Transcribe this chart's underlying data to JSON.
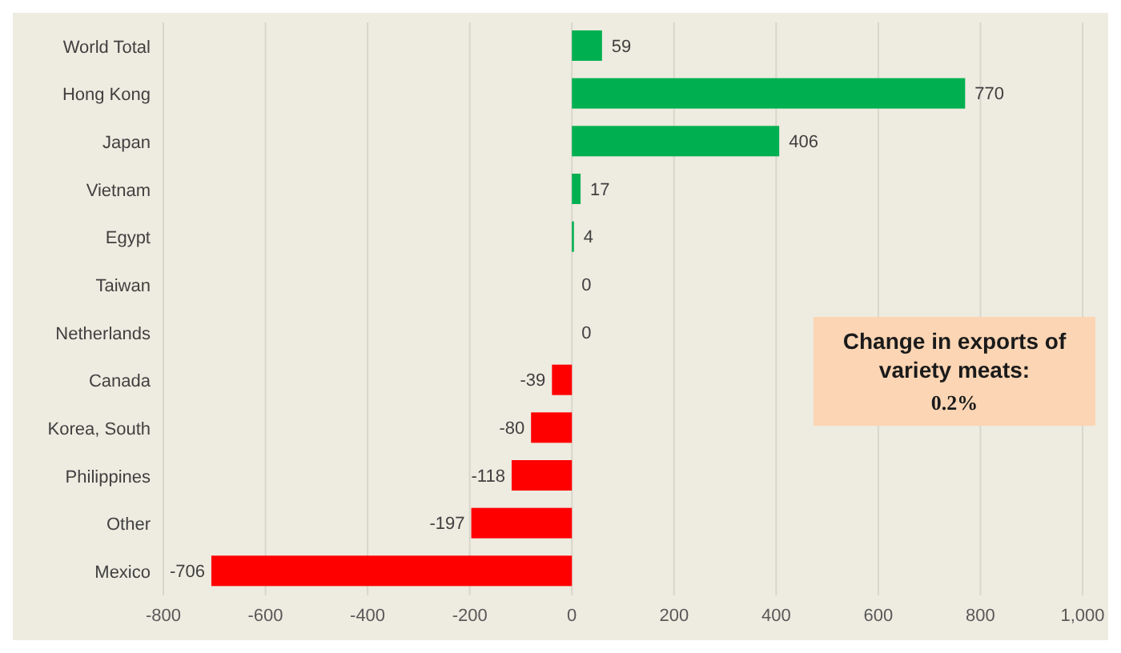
{
  "chart_data": {
    "type": "bar",
    "orientation": "horizontal",
    "categories": [
      "World Total",
      "Hong Kong",
      "Japan",
      "Vietnam",
      "Egypt",
      "Taiwan",
      "Netherlands",
      "Canada",
      "Korea, South",
      "Philippines",
      "Other",
      "Mexico"
    ],
    "values": [
      59,
      770,
      406,
      17,
      4,
      0,
      0,
      -39,
      -80,
      -118,
      -197,
      -706
    ],
    "colors": [
      "#00b050",
      "#00b050",
      "#00b050",
      "#00b050",
      "#00b050",
      "#00b050",
      "#00b050",
      "#ff0000",
      "#ff0000",
      "#ff0000",
      "#ff0000",
      "#ff0000"
    ],
    "data_labels": true,
    "xlim": [
      -800,
      1000
    ],
    "xticks": [
      -800,
      -600,
      -400,
      -200,
      0,
      200,
      400,
      600,
      800,
      {
        "value": 1000,
        "label": "1,000"
      }
    ],
    "grid": "x",
    "annotations": [
      "Change in exports of variety meats:",
      "0.2%"
    ]
  }
}
